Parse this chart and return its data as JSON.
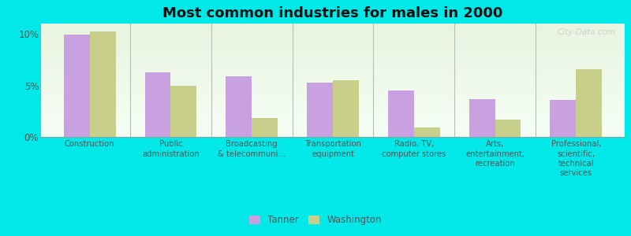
{
  "title": "Most common industries for males in 2000",
  "categories": [
    "Construction",
    "Public\nadministration",
    "Broadcasting\n& telecommuni...",
    "Transportation\nequipment",
    "Radio, TV,\ncomputer stores",
    "Arts,\nentertainment,\nrecreation",
    "Professional,\nscientific,\ntechnical\nservices"
  ],
  "tanner_values": [
    9.9,
    6.3,
    5.9,
    5.3,
    4.5,
    3.7,
    3.6
  ],
  "washington_values": [
    10.2,
    5.0,
    1.8,
    5.5,
    0.9,
    1.7,
    6.6
  ],
  "tanner_color": "#c9a0e0",
  "washington_color": "#c8cf8a",
  "bar_width": 0.32,
  "ylim": [
    0,
    11
  ],
  "yticks": [
    0,
    5,
    10
  ],
  "ytick_labels": [
    "0%",
    "5%",
    "10%"
  ],
  "legend_labels": [
    "Tanner",
    "Washington"
  ],
  "plot_bg_top": "#e8f5e0",
  "plot_bg_bottom": "#f5fef5",
  "outer_background": "#00e8e8",
  "title_fontsize": 13,
  "watermark": "City-Data.com"
}
